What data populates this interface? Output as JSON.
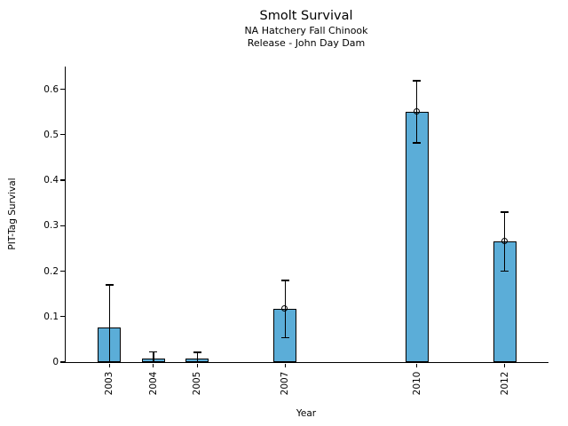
{
  "chart_data": {
    "type": "bar",
    "title": "Smolt Survival",
    "subtitle": [
      "NA Hatchery Fall Chinook",
      "Release - John Day Dam"
    ],
    "xlabel": "Year",
    "ylabel": "PIT-Tag Survival",
    "categories": [
      "2003",
      "2004",
      "2005",
      "2007",
      "2010",
      "2012"
    ],
    "x_years": [
      2003,
      2004,
      2005,
      2007,
      2010,
      2012
    ],
    "values": [
      0.076,
      0.007,
      0.008,
      0.117,
      0.551,
      0.266
    ],
    "error_low": [
      0,
      0,
      0,
      0.054,
      0.482,
      0.2
    ],
    "error_high": [
      0.17,
      0.022,
      0.021,
      0.18,
      0.619,
      0.33
    ],
    "point_markers": [
      false,
      false,
      false,
      true,
      true,
      true
    ],
    "yticks": [
      "0",
      "0.1",
      "0.2",
      "0.3",
      "0.4",
      "0.5",
      "0.6"
    ],
    "ytick_values": [
      0,
      0.1,
      0.2,
      0.3,
      0.4,
      0.5,
      0.6
    ],
    "ylim": [
      0,
      0.65
    ],
    "xlim": [
      2002,
      2013
    ],
    "grid": false,
    "legend": null,
    "bar_color": "#5badd8",
    "bar_edge_color": "#000000",
    "error_color": "#000000",
    "text_color": "#000000",
    "background_color": "#ffffff"
  }
}
